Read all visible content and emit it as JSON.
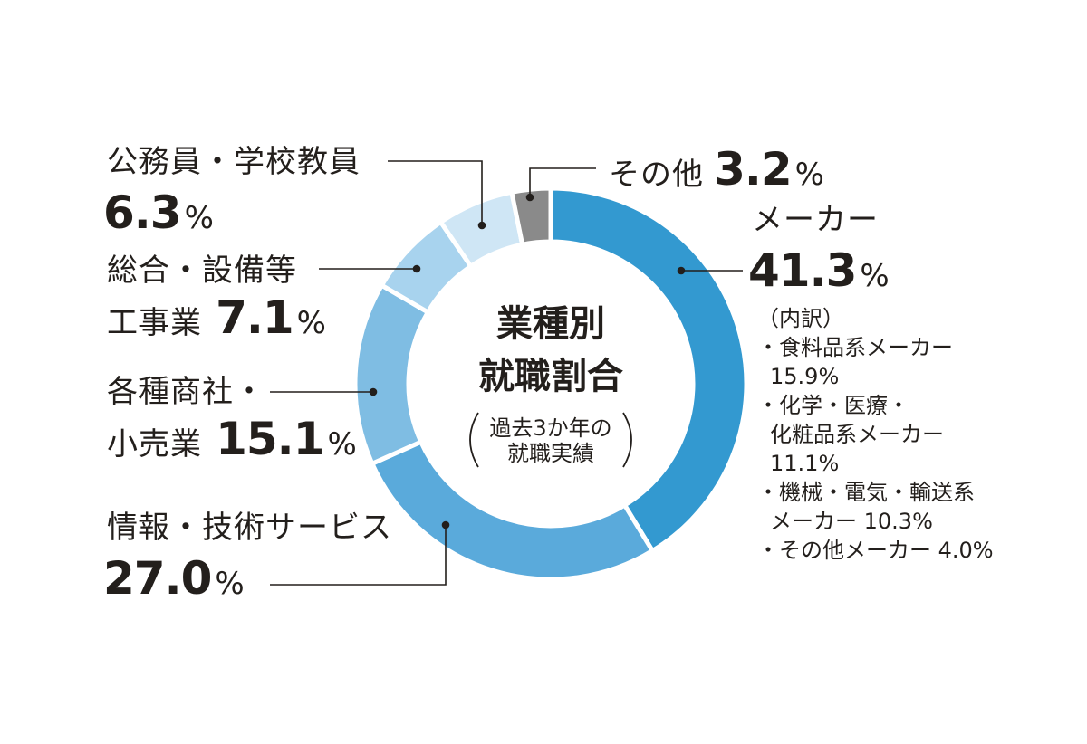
{
  "chart_data": {
    "type": "pie",
    "title": "業種別就職割合",
    "subtitle": "過去3か年の就職実績",
    "slices": [
      {
        "label": "メーカー",
        "value": 41.3,
        "color": "#3399d0"
      },
      {
        "label": "情報・技術サービス",
        "value": 27.0,
        "color": "#5aaadb"
      },
      {
        "label": "各種商社・小売業",
        "value": 15.1,
        "color": "#7fbde3"
      },
      {
        "label": "総合・設備等工事業",
        "value": 7.1,
        "color": "#a8d3ee"
      },
      {
        "label": "公務員・学校教員",
        "value": 6.3,
        "color": "#cfe6f5"
      },
      {
        "label": "その他",
        "value": 3.2,
        "color": "#8a8a8a"
      }
    ]
  },
  "center": {
    "title_line1": "業種別",
    "title_line2": "就職割合",
    "note_line1": "過去3か年の",
    "note_line2": "就職実績"
  },
  "labels": {
    "koumuin": {
      "name": "公務員・学校教員",
      "value": "6.3",
      "unit": "%"
    },
    "sougou": {
      "line1": "総合・設備等",
      "line2": "工事業",
      "value": "7.1",
      "unit": "%"
    },
    "shousha": {
      "line1": "各種商社・",
      "line2": "小売業",
      "value": "15.1",
      "unit": "%"
    },
    "jouhou": {
      "name": "情報・技術サービス",
      "value": "27.0",
      "unit": "%"
    },
    "sonota": {
      "name": "その他",
      "value": "3.2",
      "unit": "%"
    },
    "maker": {
      "name": "メーカー",
      "value": "41.3",
      "unit": "%"
    }
  },
  "breakdown": {
    "heading": "（内訳）",
    "line1": "・食料品系メーカー",
    "line2": "15.9%",
    "line3": "・化学・医療・",
    "line4": "化粧品系メーカー",
    "line5": "11.1%",
    "line6": "・機械・電気・輸送系",
    "line7": "メーカー 10.3%",
    "line8": "・その他メーカー 4.0%"
  }
}
